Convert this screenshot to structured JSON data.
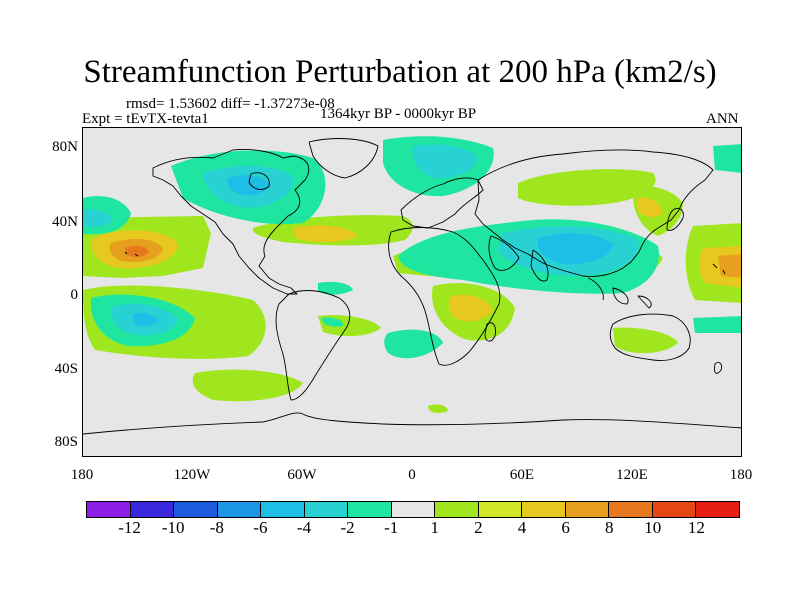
{
  "title": "Streamfunction Perturbation at 200 hPa (km2/s)",
  "stats_line": "rmsd= 1.53602 diff= -1.37273e-08",
  "experiment": "Expt = tEvTX-tevta1",
  "time_range": "1364kyr BP - 0000kyr BP",
  "season": "ANN",
  "y_axis_labels": [
    "80N",
    "40N",
    "0",
    "40S",
    "80S"
  ],
  "x_axis_labels": [
    "180",
    "120W",
    "60W",
    "0",
    "60E",
    "120E",
    "180"
  ],
  "colorbar": {
    "colors": [
      "#8c1ee6",
      "#3c28dc",
      "#1e5adc",
      "#1e96e6",
      "#1ebee6",
      "#28d2d2",
      "#1ee6a0",
      "#e6e6e6",
      "#a0e61e",
      "#d2e628",
      "#e6c81e",
      "#e6a01e",
      "#e6781e",
      "#e64614",
      "#e61e14"
    ],
    "labels": [
      "-12",
      "-10",
      "-8",
      "-6",
      "-4",
      "-2",
      "-1",
      "1",
      "2",
      "4",
      "6",
      "8",
      "10",
      "12"
    ]
  }
}
